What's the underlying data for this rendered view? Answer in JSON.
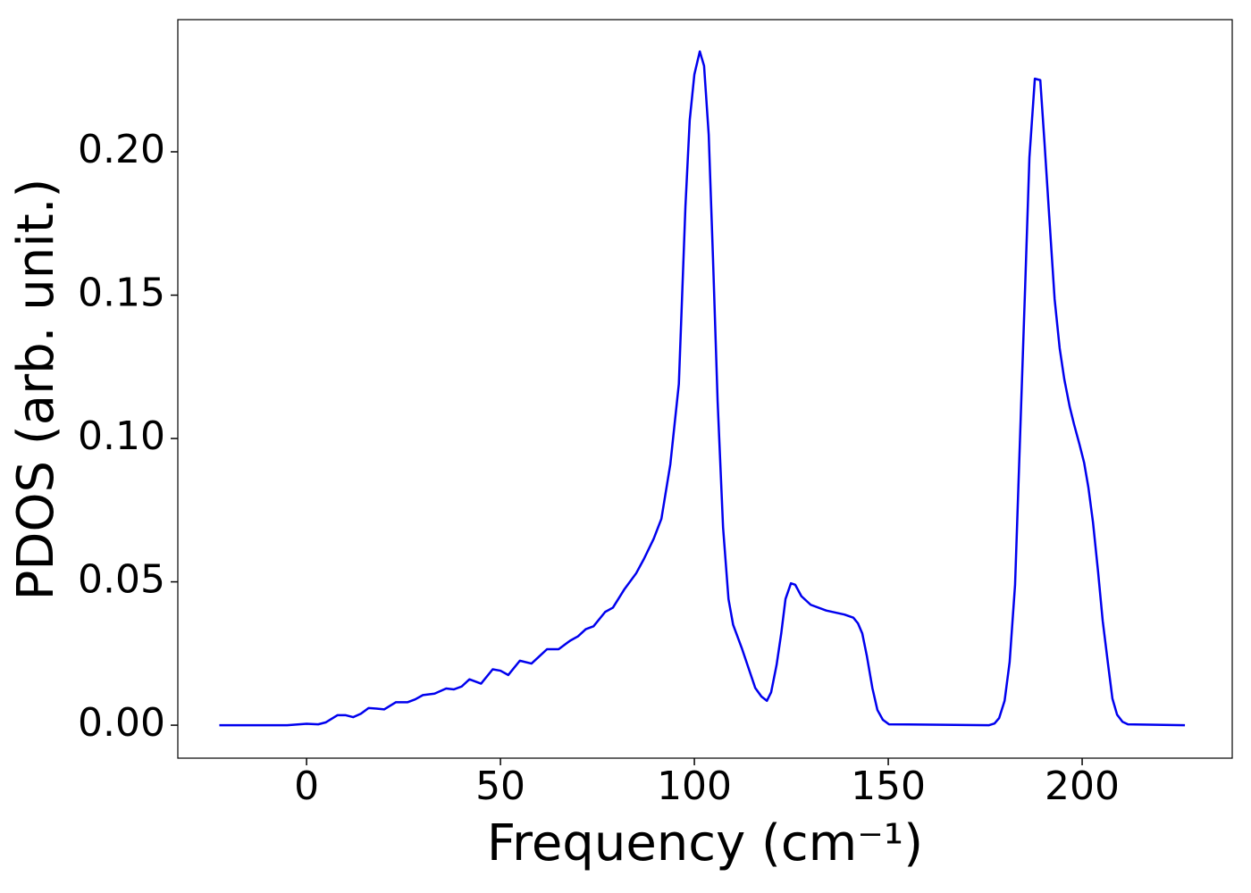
{
  "chart_data": {
    "type": "line",
    "xlabel": "Frequency (cm⁻¹)",
    "ylabel": "PDOS (arb. unit.)",
    "x": [
      -22.5,
      -5,
      0,
      3,
      5,
      8,
      10,
      12,
      14,
      16,
      18,
      20,
      23,
      26,
      28,
      30,
      33,
      36,
      38,
      40,
      42,
      45,
      48,
      50,
      52,
      55,
      58,
      60,
      62,
      65,
      68,
      70,
      72,
      74,
      77,
      79,
      82,
      85,
      87,
      89.5,
      91.5,
      93.8,
      96,
      97.7,
      98.8,
      100,
      101.4,
      102.5,
      103.7,
      104.8,
      106,
      107.4,
      108.8,
      110,
      112.2,
      115.7,
      117.3,
      118.7,
      119.8,
      121.2,
      122.4,
      123.5,
      124.9,
      126,
      127.6,
      130,
      134,
      138.7,
      141,
      142.2,
      143.3,
      144.5,
      145.9,
      147.2,
      148.6,
      150.2,
      176,
      177.4,
      178.6,
      180,
      181.3,
      182.7,
      183.9,
      185.3,
      186.4,
      187.8,
      189.2,
      190.3,
      191.7,
      192.9,
      194.2,
      195.4,
      196.8,
      197.9,
      199.3,
      200.5,
      201.6,
      202.8,
      204.1,
      205.3,
      206.7,
      207.8,
      209,
      210.4,
      211.8,
      226.5
    ],
    "series": [
      {
        "name": "PDOS",
        "color": "#0000ee",
        "values": [
          0,
          0,
          0.0005,
          0.0003,
          0.001,
          0.0035,
          0.0035,
          0.0028,
          0.004,
          0.006,
          0.0058,
          0.0055,
          0.008,
          0.008,
          0.009,
          0.0105,
          0.011,
          0.0128,
          0.0125,
          0.0135,
          0.016,
          0.0145,
          0.0195,
          0.019,
          0.0175,
          0.0225,
          0.0215,
          0.024,
          0.0265,
          0.0265,
          0.0295,
          0.031,
          0.0335,
          0.0345,
          0.0395,
          0.041,
          0.0475,
          0.053,
          0.058,
          0.065,
          0.072,
          0.091,
          0.119,
          0.181,
          0.211,
          0.227,
          0.235,
          0.23,
          0.206,
          0.163,
          0.113,
          0.069,
          0.044,
          0.035,
          0.027,
          0.013,
          0.01,
          0.0085,
          0.0115,
          0.021,
          0.032,
          0.044,
          0.0495,
          0.049,
          0.045,
          0.042,
          0.04,
          0.0386,
          0.0375,
          0.0355,
          0.032,
          0.024,
          0.013,
          0.0053,
          0.0019,
          0.0003,
          0,
          0.0006,
          0.0025,
          0.0085,
          0.022,
          0.049,
          0.097,
          0.153,
          0.198,
          0.2255,
          0.225,
          0.203,
          0.1735,
          0.1486,
          0.1315,
          0.1206,
          0.111,
          0.105,
          0.098,
          0.0916,
          0.083,
          0.0707,
          0.0536,
          0.0364,
          0.021,
          0.0093,
          0.0037,
          0.0012,
          0.0003,
          0
        ]
      }
    ],
    "xlim": [
      -33.2,
      238.7
    ],
    "ylim": [
      -0.0115,
      0.2461
    ],
    "xticks": [
      0,
      50,
      100,
      150,
      200
    ],
    "yticks": [
      {
        "value": 0,
        "label": "0.00"
      },
      {
        "value": 0.05,
        "label": "0.05"
      },
      {
        "value": 0.1,
        "label": "0.10"
      },
      {
        "value": 0.15,
        "label": "0.15"
      },
      {
        "value": 0.2,
        "label": "0.20"
      }
    ],
    "grid": false
  }
}
